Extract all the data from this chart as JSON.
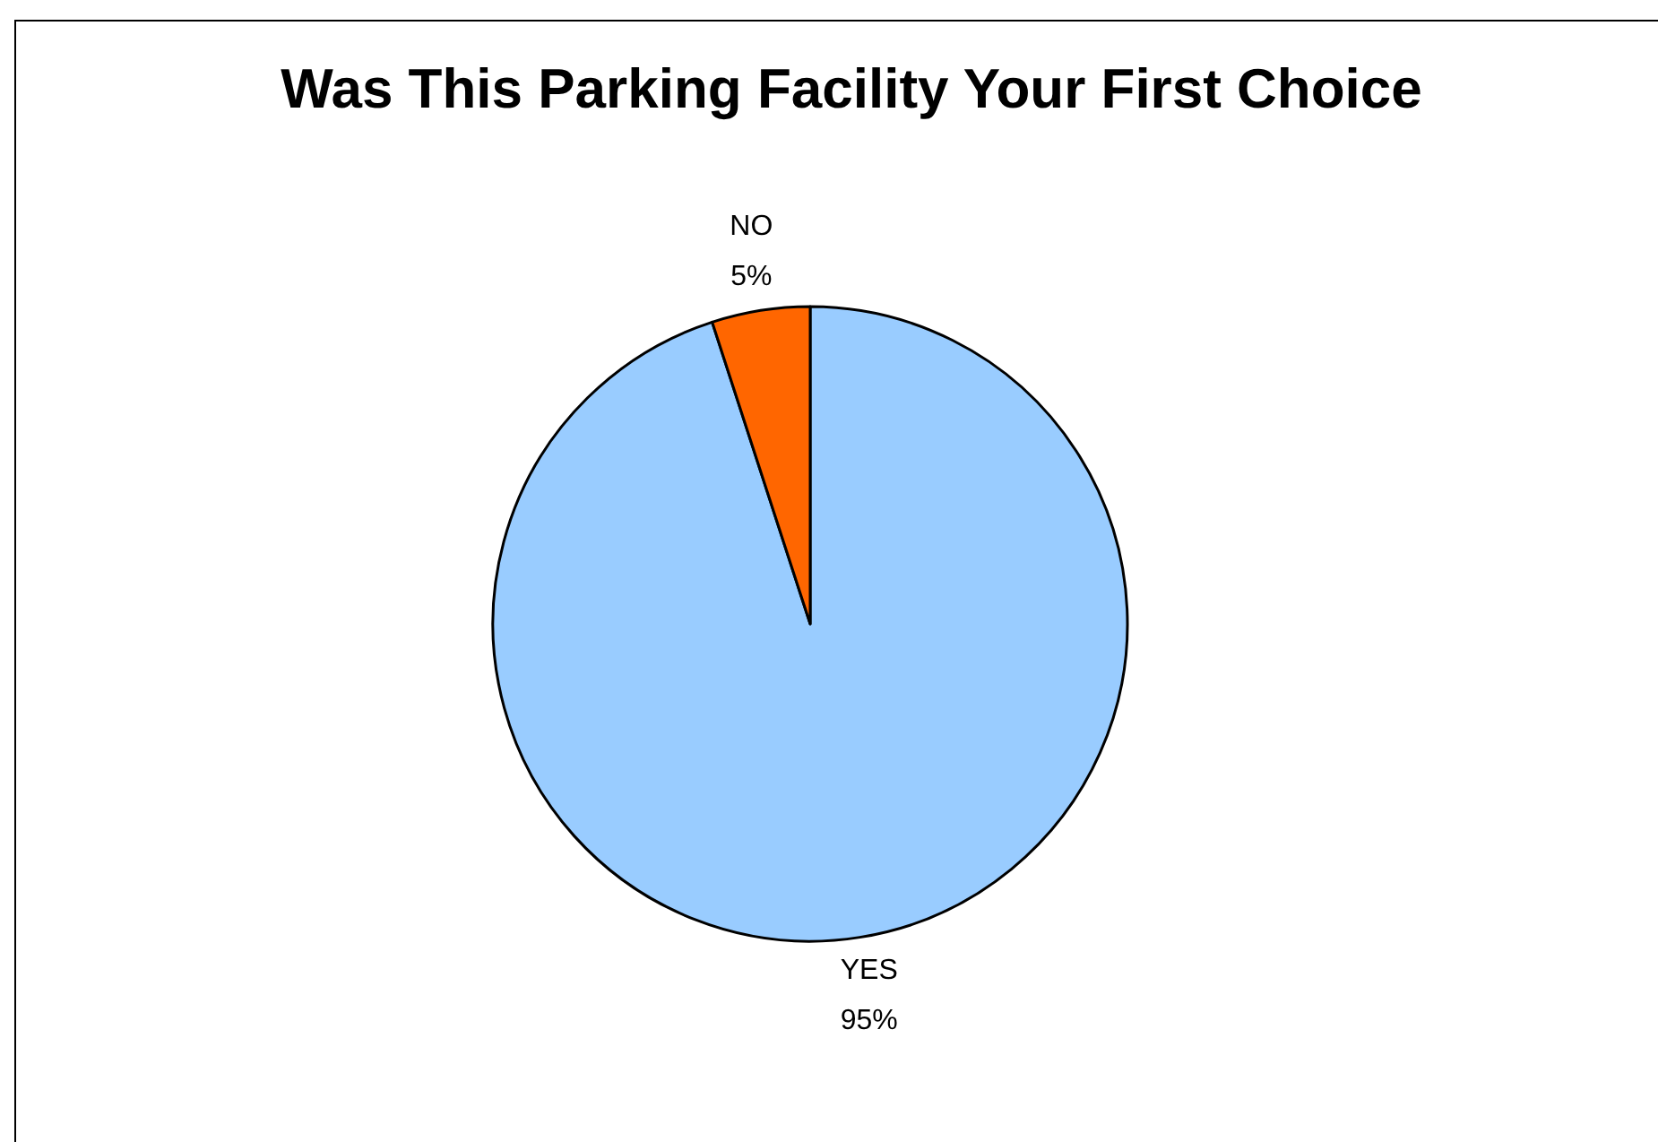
{
  "chart_data": {
    "type": "pie",
    "title": "Was This Parking Facility Your First Choice",
    "categories": [
      "YES",
      "NO"
    ],
    "values": [
      95,
      5
    ],
    "colors": [
      "#99ccff",
      "#ff6600"
    ],
    "value_labels": [
      "95%",
      "5%"
    ],
    "legend": false
  }
}
